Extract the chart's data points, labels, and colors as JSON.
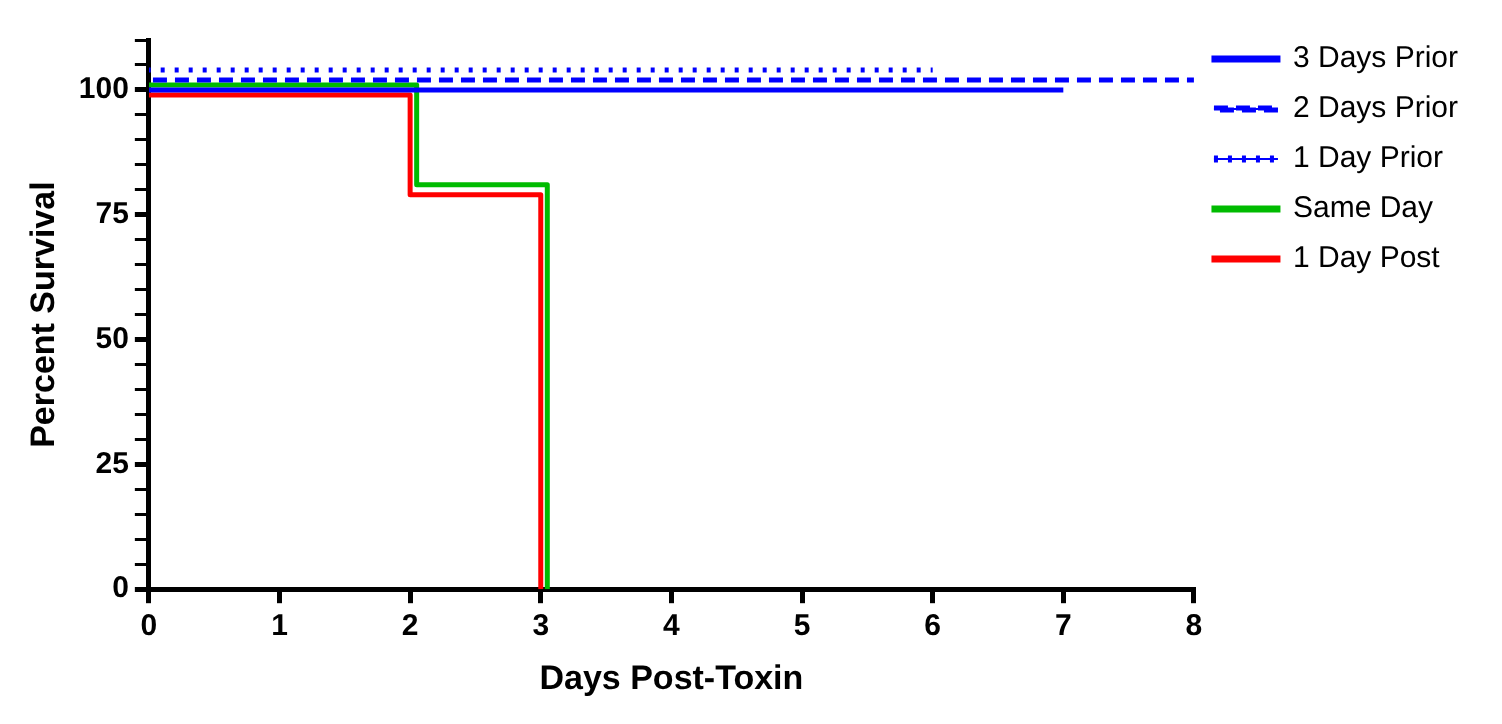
{
  "chart_data": {
    "type": "step",
    "xlabel": "Days Post-Toxin",
    "ylabel": "Percent Survival",
    "xlim": [
      0,
      8
    ],
    "xticks": [
      0,
      1,
      2,
      3,
      4,
      5,
      6,
      7,
      8
    ],
    "ylim": [
      0,
      110
    ],
    "yticks": [
      0,
      {
        "value": 5,
        "label": null
      },
      {
        "value": 10,
        "label": null
      },
      {
        "value": 15,
        "label": null
      },
      {
        "value": 20,
        "label": null
      },
      25,
      {
        "value": 30,
        "label": null
      },
      {
        "value": 35,
        "label": null
      },
      {
        "value": 40,
        "label": null
      },
      {
        "value": 45,
        "label": null
      },
      50,
      {
        "value": 55,
        "label": null
      },
      {
        "value": 60,
        "label": null
      },
      {
        "value": 65,
        "label": null
      },
      {
        "value": 70,
        "label": null
      },
      75,
      {
        "value": 80,
        "label": null
      },
      {
        "value": 85,
        "label": null
      },
      {
        "value": 90,
        "label": null
      },
      {
        "value": 95,
        "label": null
      },
      100,
      {
        "value": 105,
        "label": null
      },
      {
        "value": 110,
        "label": null
      }
    ],
    "grid": false,
    "legend": "right",
    "marker": "none",
    "series": [
      {
        "name": "3 Days Prior",
        "color": "#0000ff",
        "line_style": "solid",
        "x": [
          0,
          7
        ],
        "values": [
          100,
          100
        ]
      },
      {
        "name": "2 Days Prior",
        "color": "#0000ff",
        "line_style": "dashed",
        "x": [
          0,
          8
        ],
        "values": [
          102,
          102
        ]
      },
      {
        "name": "1 Day Prior",
        "color": "#0000ff",
        "line_style": "dotted",
        "x": [
          0,
          6
        ],
        "values": [
          104,
          104
        ]
      },
      {
        "name": "Same Day",
        "color": "#00bb00",
        "line_style": "solid",
        "x": [
          0,
          2.05,
          3.05
        ],
        "values": [
          101,
          81,
          0
        ]
      },
      {
        "name": "1 Day Post",
        "color": "#ff0000",
        "line_style": "solid",
        "x": [
          0,
          2,
          3
        ],
        "values": [
          99,
          79,
          0
        ]
      }
    ]
  }
}
